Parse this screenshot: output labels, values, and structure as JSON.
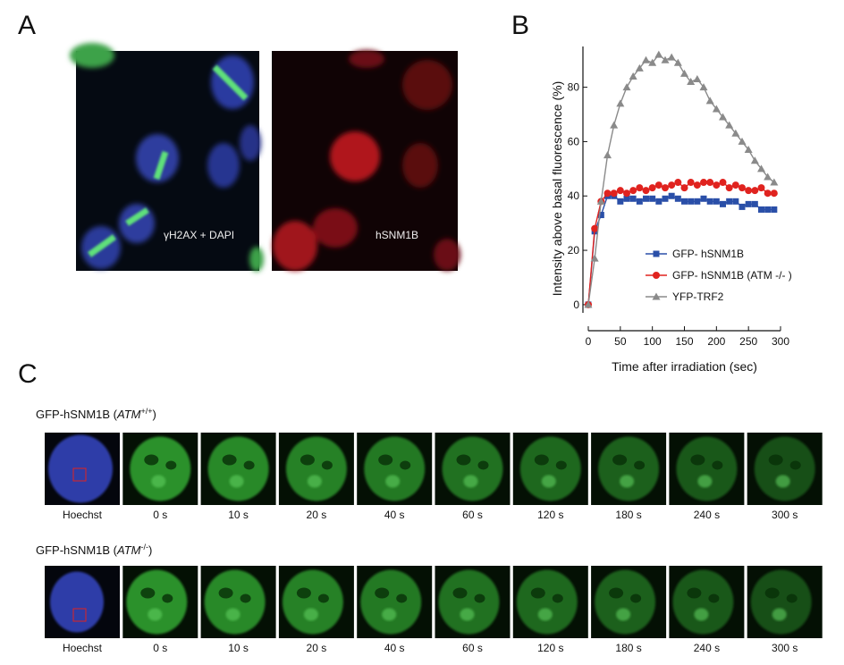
{
  "panel_labels": [
    "A",
    "B",
    "C"
  ],
  "panel_a": {
    "images": [
      {
        "label": "γH2AX + DAPI"
      },
      {
        "label": "hSNM1B"
      }
    ]
  },
  "chart_data": {
    "type": "line",
    "x_label": "Time after irradiation (sec)",
    "y_label": "Intensity above basal fluorescence (%)",
    "x": [
      0,
      10,
      20,
      30,
      40,
      50,
      60,
      70,
      80,
      90,
      100,
      110,
      120,
      130,
      140,
      150,
      160,
      170,
      180,
      190,
      200,
      210,
      220,
      230,
      240,
      250,
      260,
      270,
      280,
      290
    ],
    "series": [
      {
        "name": "GFP- hSNM1B",
        "color": "#2a4fa8",
        "marker": "square",
        "values": [
          0,
          27,
          33,
          40,
          40,
          38,
          39,
          39,
          38,
          39,
          39,
          38,
          39,
          40,
          39,
          38,
          38,
          38,
          39,
          38,
          38,
          37,
          38,
          38,
          36,
          37,
          37,
          35,
          35,
          35
        ]
      },
      {
        "name": "GFP- hSNM1B (ATM -/- )",
        "color": "#e0231f",
        "marker": "circle",
        "values": [
          0,
          28,
          38,
          41,
          41,
          42,
          41,
          42,
          43,
          42,
          43,
          44,
          43,
          44,
          45,
          43,
          45,
          44,
          45,
          45,
          44,
          45,
          43,
          44,
          43,
          42,
          42,
          43,
          41,
          41
        ]
      },
      {
        "name": "YFP-TRF2",
        "color": "#8a8a8a",
        "marker": "triangle",
        "values": [
          0,
          17,
          38,
          55,
          66,
          74,
          80,
          84,
          87,
          90,
          89,
          92,
          90,
          91,
          89,
          85,
          82,
          83,
          80,
          75,
          72,
          69,
          66,
          63,
          60,
          57,
          53,
          50,
          47,
          45
        ]
      }
    ],
    "xlim": [
      0,
      300
    ],
    "xticks": [
      0,
      50,
      100,
      150,
      200,
      250,
      300
    ],
    "ylim": [
      -3,
      95
    ],
    "yticks": [
      0,
      20,
      40,
      60,
      80
    ],
    "legend": "lower right"
  },
  "panel_c": {
    "rows": [
      {
        "title": [
          "GFP-hSNM1B (",
          "ATM",
          "+/+",
          ")"
        ],
        "frames": [
          "Hoechst",
          "0 s",
          "10 s",
          "20 s",
          "40 s",
          "60 s",
          "120 s",
          "180 s",
          "240 s",
          "300 s"
        ]
      },
      {
        "title": [
          "GFP-hSNM1B (",
          "ATM",
          "-/-",
          ")"
        ],
        "frames": [
          "Hoechst",
          "0 s",
          "10 s",
          "20 s",
          "40 s",
          "60 s",
          "120 s",
          "180 s",
          "240 s",
          "300 s"
        ]
      }
    ]
  }
}
